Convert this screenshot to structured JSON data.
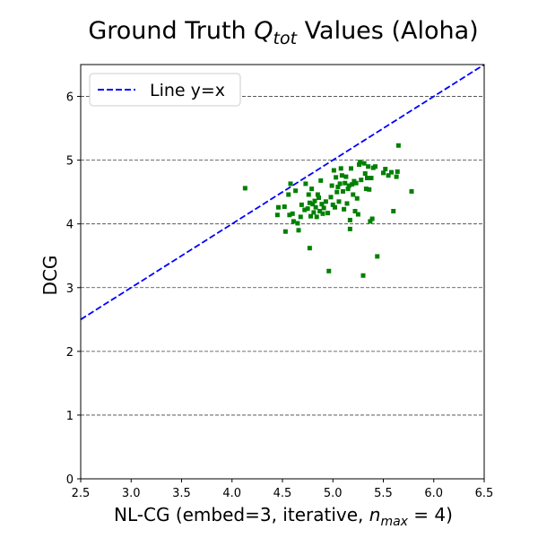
{
  "chart_data": {
    "type": "scatter",
    "title": {
      "prefix": "Ground Truth ",
      "math_base": "Q",
      "math_sub": "tot",
      "suffix": " Values (Aloha)"
    },
    "xlabel": {
      "prefix": "NL-CG (embed=3, iterative, ",
      "math_base": "n",
      "math_sub": "max",
      "suffix": " = 4)"
    },
    "ylabel": "DCG",
    "xlim": [
      2.5,
      6.5
    ],
    "ylim": [
      0,
      6.5
    ],
    "x_ticks": [
      "2.5",
      "3.0",
      "3.5",
      "4.0",
      "4.5",
      "5.0",
      "5.5",
      "6.0",
      "6.5"
    ],
    "y_ticks": [
      "0",
      "1",
      "2",
      "3",
      "4",
      "5",
      "6"
    ],
    "grid": "horizontal dashed",
    "legend": {
      "position": "top-left",
      "entries": [
        "Line y=x"
      ]
    },
    "reference_line": {
      "name": "Line y=x",
      "slope": 1,
      "intercept": 0,
      "color": "#0000ff",
      "style": "dashed"
    },
    "marker_color": "#008000",
    "series": [
      {
        "name": "",
        "points": [
          [
            4.13,
            4.56
          ],
          [
            4.45,
            4.14
          ],
          [
            4.46,
            4.26
          ],
          [
            4.52,
            4.27
          ],
          [
            4.53,
            3.88
          ],
          [
            4.56,
            4.46
          ],
          [
            4.57,
            4.14
          ],
          [
            4.58,
            4.63
          ],
          [
            4.6,
            4.16
          ],
          [
            4.61,
            4.04
          ],
          [
            4.63,
            4.52
          ],
          [
            4.65,
            4.01
          ],
          [
            4.66,
            3.9
          ],
          [
            4.68,
            4.11
          ],
          [
            4.69,
            4.3
          ],
          [
            4.72,
            4.22
          ],
          [
            4.73,
            4.63
          ],
          [
            4.75,
            4.24
          ],
          [
            4.76,
            4.46
          ],
          [
            4.77,
            3.62
          ],
          [
            4.77,
            4.33
          ],
          [
            4.78,
            4.12
          ],
          [
            4.79,
            4.55
          ],
          [
            4.8,
            4.31
          ],
          [
            4.81,
            4.18
          ],
          [
            4.82,
            4.36
          ],
          [
            4.83,
            4.26
          ],
          [
            4.84,
            4.11
          ],
          [
            4.85,
            4.46
          ],
          [
            4.86,
            4.41
          ],
          [
            4.87,
            4.2
          ],
          [
            4.88,
            4.68
          ],
          [
            4.89,
            4.31
          ],
          [
            4.9,
            4.16
          ],
          [
            4.91,
            4.25
          ],
          [
            4.93,
            4.35
          ],
          [
            4.95,
            4.17
          ],
          [
            4.96,
            3.26
          ],
          [
            4.98,
            4.42
          ],
          [
            4.99,
            4.6
          ],
          [
            5.0,
            4.3
          ],
          [
            5.01,
            4.84
          ],
          [
            5.02,
            4.26
          ],
          [
            5.03,
            4.73
          ],
          [
            5.04,
            4.5
          ],
          [
            5.05,
            4.58
          ],
          [
            5.06,
            4.35
          ],
          [
            5.07,
            4.63
          ],
          [
            5.08,
            4.87
          ],
          [
            5.09,
            4.76
          ],
          [
            5.1,
            4.51
          ],
          [
            5.11,
            4.23
          ],
          [
            5.12,
            4.64
          ],
          [
            5.13,
            4.74
          ],
          [
            5.14,
            4.32
          ],
          [
            5.15,
            4.55
          ],
          [
            5.16,
            4.6
          ],
          [
            5.17,
            3.92
          ],
          [
            5.17,
            4.06
          ],
          [
            5.18,
            4.87
          ],
          [
            5.19,
            4.62
          ],
          [
            5.2,
            4.46
          ],
          [
            5.21,
            4.67
          ],
          [
            5.22,
            4.2
          ],
          [
            5.23,
            4.64
          ],
          [
            5.24,
            4.4
          ],
          [
            5.25,
            4.15
          ],
          [
            5.26,
            4.93
          ],
          [
            5.27,
            4.97
          ],
          [
            5.28,
            4.69
          ],
          [
            5.3,
            3.19
          ],
          [
            5.31,
            4.95
          ],
          [
            5.32,
            4.79
          ],
          [
            5.33,
            4.55
          ],
          [
            5.34,
            4.72
          ],
          [
            5.35,
            4.9
          ],
          [
            5.36,
            4.54
          ],
          [
            5.37,
            4.04
          ],
          [
            5.38,
            4.72
          ],
          [
            5.39,
            4.08
          ],
          [
            5.4,
            4.88
          ],
          [
            5.42,
            4.9
          ],
          [
            5.44,
            3.49
          ],
          [
            5.5,
            4.8
          ],
          [
            5.52,
            4.86
          ],
          [
            5.55,
            4.76
          ],
          [
            5.58,
            4.81
          ],
          [
            5.6,
            4.2
          ],
          [
            5.63,
            4.74
          ],
          [
            5.64,
            4.82
          ],
          [
            5.65,
            5.23
          ],
          [
            5.78,
            4.51
          ]
        ]
      }
    ]
  }
}
